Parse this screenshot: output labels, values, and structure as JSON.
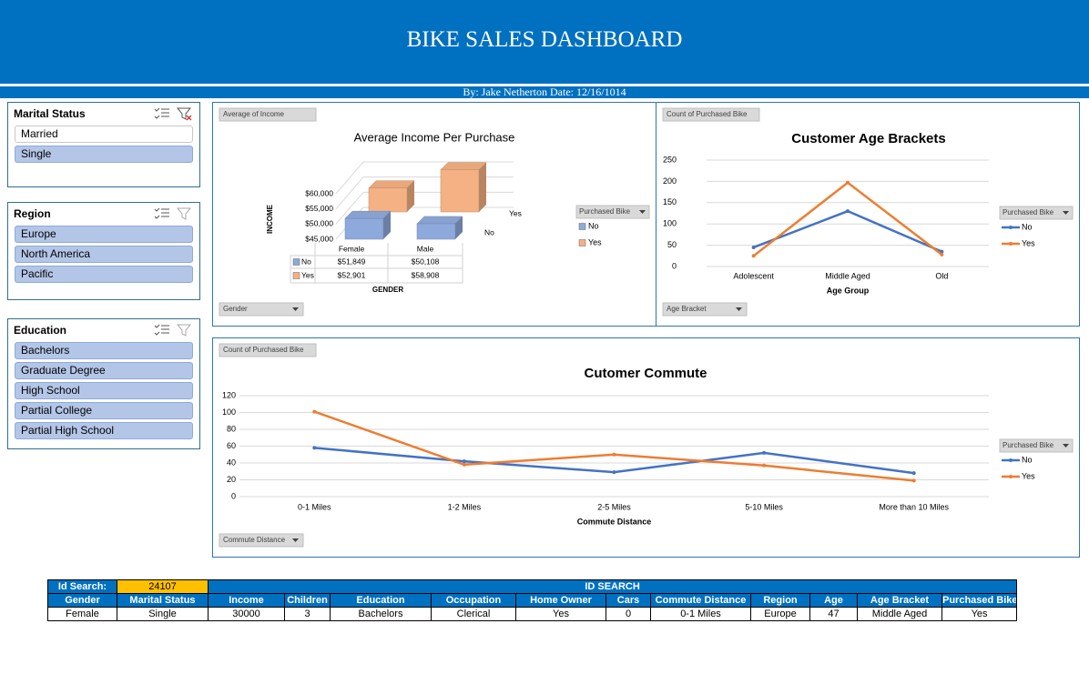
{
  "header": {
    "title": "BIKE SALES DASHBOARD",
    "subtitle": "By: Jake Netherton Date: 12/16/1014"
  },
  "slicers": [
    {
      "title": "Marital Status",
      "items": [
        "Married",
        "Single"
      ]
    },
    {
      "title": "Region",
      "items": [
        "Europe",
        "North America",
        "Pacific"
      ]
    },
    {
      "title": "Education",
      "items": [
        "Bachelors",
        "Graduate Degree",
        "High School",
        "Partial College",
        "Partial High School"
      ]
    }
  ],
  "chart_data": [
    {
      "type": "bar",
      "title": "Average Income Per Purchase",
      "value_field": "Average of Income",
      "axis_field": "Gender",
      "legend_title": "Purchased Bike",
      "y_label": "INCOME",
      "x_label": "GENDER",
      "categories": [
        "Female",
        "Male"
      ],
      "series": [
        {
          "name": "No",
          "color": "#8ea9db",
          "values": [
            51849,
            50108
          ],
          "value_labels": [
            "$51,849",
            "$50,108"
          ]
        },
        {
          "name": "Yes",
          "color": "#f4b183",
          "values": [
            52901,
            58908
          ],
          "value_labels": [
            "$52,901",
            "$58,908"
          ]
        }
      ],
      "ylim": [
        45000,
        60000
      ],
      "yticks": [
        {
          "value": 45000,
          "label": "$45,000"
        },
        {
          "value": 50000,
          "label": "$50,000"
        },
        {
          "value": 55000,
          "label": "$55,000"
        },
        {
          "value": 60000,
          "label": "$60,000"
        }
      ]
    },
    {
      "type": "line",
      "title": "Customer Age Brackets",
      "value_field": "Count of Purchased Bike",
      "axis_field": "Age Bracket",
      "legend_title": "Purchased Bike",
      "x_label": "Age Group",
      "categories": [
        "Adolescent",
        "Middle Aged",
        "Old"
      ],
      "series": [
        {
          "name": "No",
          "color": "#4472c4",
          "values": [
            45,
            130,
            35
          ]
        },
        {
          "name": "Yes",
          "color": "#ed7d31",
          "values": [
            25,
            197,
            28
          ]
        }
      ],
      "ylim": [
        0,
        250
      ],
      "yticks": [
        0,
        50,
        100,
        150,
        200,
        250
      ],
      "grid": true
    },
    {
      "type": "line",
      "title": "Cutomer Commute",
      "value_field": "Count of Purchased Bike",
      "axis_field": "Commute Distance",
      "legend_title": "Purchased Bike",
      "x_label": "Commute Distance",
      "categories": [
        "0-1 Miles",
        "1-2 Miles",
        "2-5 Miles",
        "5-10 Miles",
        "More than 10 Miles"
      ],
      "series": [
        {
          "name": "No",
          "color": "#4472c4",
          "values": [
            58,
            42,
            29,
            52,
            28
          ]
        },
        {
          "name": "Yes",
          "color": "#ed7d31",
          "values": [
            101,
            38,
            50,
            37,
            19
          ]
        }
      ],
      "ylim": [
        0,
        120
      ],
      "yticks": [
        0,
        20,
        40,
        60,
        80,
        100,
        120
      ],
      "grid": true
    }
  ],
  "id_search": {
    "label": "Id Search:",
    "id": "24107",
    "title": "ID SEARCH",
    "columns": [
      "Gender",
      "Marital Status",
      "Income",
      "Children",
      "Education",
      "Occupation",
      "Home Owner",
      "Cars",
      "Commute Distance",
      "Region",
      "Age",
      "Age Bracket",
      "Purchased Bike"
    ],
    "row": [
      "Female",
      "Single",
      "30000",
      "3",
      "Bachelors",
      "Clerical",
      "Yes",
      "0",
      "0-1 Miles",
      "Europe",
      "47",
      "Middle Aged",
      "Yes"
    ]
  }
}
